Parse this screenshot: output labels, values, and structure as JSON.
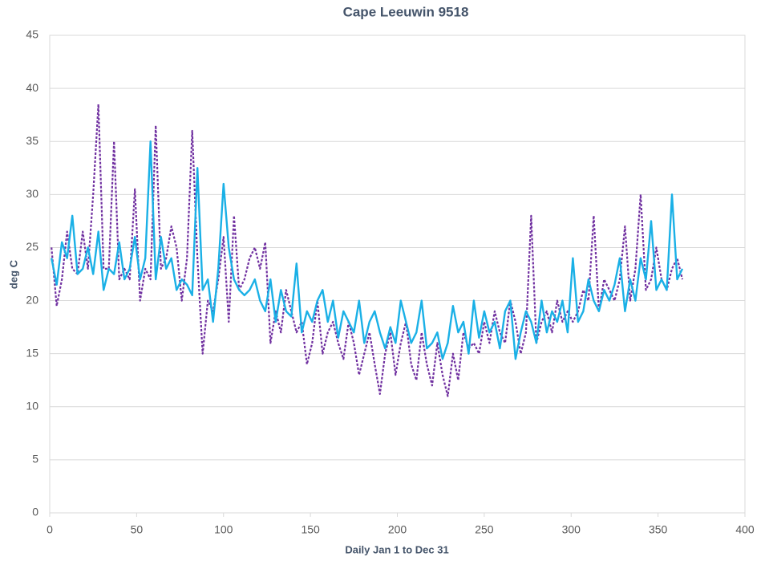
{
  "chart_data": {
    "type": "line",
    "title": "Cape Leeuwin 9518",
    "xlabel": "Daily Jan 1 to Dec 31",
    "ylabel": "deg C",
    "xlim": [
      0,
      400
    ],
    "xticks": [
      0,
      50,
      100,
      150,
      200,
      250,
      300,
      350,
      400
    ],
    "ylim": [
      0,
      45
    ],
    "yticks": [
      0,
      5,
      10,
      15,
      20,
      25,
      30,
      35,
      40,
      45
    ],
    "grid": true,
    "x": [
      1,
      4,
      7,
      10,
      13,
      16,
      19,
      22,
      25,
      28,
      31,
      34,
      37,
      40,
      43,
      46,
      49,
      52,
      55,
      58,
      61,
      64,
      67,
      70,
      73,
      76,
      79,
      82,
      85,
      88,
      91,
      94,
      97,
      100,
      103,
      106,
      109,
      112,
      115,
      118,
      121,
      124,
      127,
      130,
      133,
      136,
      139,
      142,
      145,
      148,
      151,
      154,
      157,
      160,
      163,
      166,
      169,
      172,
      175,
      178,
      181,
      184,
      187,
      190,
      193,
      196,
      199,
      202,
      205,
      208,
      211,
      214,
      217,
      220,
      223,
      226,
      229,
      232,
      235,
      238,
      241,
      244,
      247,
      250,
      253,
      256,
      259,
      262,
      265,
      268,
      271,
      274,
      277,
      280,
      283,
      286,
      289,
      292,
      295,
      298,
      301,
      304,
      307,
      310,
      313,
      316,
      319,
      322,
      325,
      328,
      331,
      334,
      337,
      340,
      343,
      346,
      349,
      352,
      355,
      358,
      361,
      364
    ],
    "series": [
      {
        "color": "#7030a0",
        "dashed": true,
        "values": [
          25,
          19.5,
          22,
          26.5,
          23,
          22.5,
          26.5,
          23,
          30,
          38.5,
          23,
          23,
          35,
          22,
          23,
          22,
          30.5,
          20,
          23,
          22,
          36.5,
          23,
          24,
          27,
          25,
          20,
          24,
          36,
          24,
          15,
          20,
          19,
          22,
          26,
          18,
          28,
          21,
          22,
          24,
          25,
          23,
          25.5,
          16,
          19,
          17,
          21,
          19,
          17,
          18,
          14,
          16,
          20,
          15,
          17,
          18,
          16,
          14.5,
          18,
          16,
          13,
          15,
          17,
          14,
          11.2,
          15,
          17,
          13,
          16,
          18,
          14,
          12.5,
          17,
          14,
          12,
          16,
          13,
          11,
          15,
          12.5,
          17,
          15.5,
          16,
          15,
          18,
          16,
          19,
          17,
          16,
          20,
          18,
          15,
          17,
          28,
          16,
          18,
          19,
          17,
          20,
          18,
          19,
          18,
          19,
          21,
          20,
          28,
          19,
          22,
          21,
          20,
          22,
          27,
          20,
          23,
          30,
          21,
          22,
          25,
          22,
          21,
          23,
          24,
          22
        ]
      },
      {
        "color": "#1ab0e6",
        "dashed": false,
        "values": [
          24,
          21.5,
          25.5,
          24,
          28,
          22.5,
          23,
          25,
          22.5,
          26.5,
          21,
          23,
          22.5,
          25.5,
          22,
          23,
          26,
          22,
          24,
          35,
          22,
          26,
          23,
          24,
          21,
          22,
          21.5,
          20.5,
          32.5,
          21,
          22,
          18,
          23,
          31,
          25,
          22,
          21,
          20.5,
          21,
          22,
          20,
          19,
          22,
          18,
          21,
          19,
          18.5,
          23.5,
          17,
          19,
          18,
          20,
          21,
          18,
          20,
          16.5,
          19,
          18,
          17,
          20,
          16,
          18,
          19,
          17,
          15.5,
          17.5,
          16,
          20,
          18,
          16,
          17,
          20,
          15.5,
          16,
          17,
          14.5,
          16,
          19.5,
          17,
          18,
          15,
          20,
          16.5,
          19,
          17,
          18,
          15.5,
          19,
          20,
          14.5,
          17,
          19,
          18,
          16,
          20,
          17,
          19,
          18,
          20,
          17,
          24,
          18,
          19,
          22,
          20,
          19,
          21,
          20,
          21.5,
          24,
          19,
          22,
          20,
          24,
          22,
          27.5,
          21,
          22,
          21,
          30,
          22,
          23
        ]
      }
    ]
  }
}
